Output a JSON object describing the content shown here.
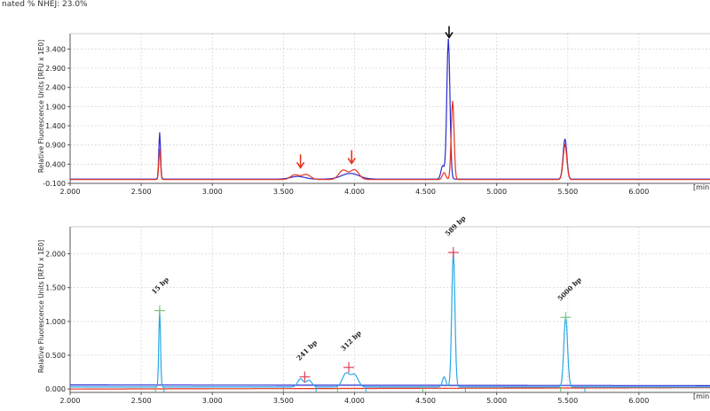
{
  "header": {
    "text": "nated % NHEJ: 23.0%"
  },
  "chart_data": [
    {
      "type": "line",
      "ylabel": "Relative Fluorescence Units [RFU x 1E0]",
      "x_unit_label": "[min]",
      "xlim": [
        2.0,
        6.5
      ],
      "ylim": [
        -0.1,
        3.8
      ],
      "x_ticks": [
        "2.000",
        "2.500",
        "3.000",
        "3.500",
        "4.000",
        "4.500",
        "5.000",
        "5.500",
        "6.000"
      ],
      "y_ticks": [
        "-0.100",
        "0.400",
        "0.900",
        "1.400",
        "1.900",
        "2.400",
        "2.900",
        "3.400"
      ],
      "grid": true,
      "series": [
        {
          "color": "#2a2ad0",
          "baseline": 0.01,
          "peaks": [
            [
              2.63,
              1.22,
              0.006
            ],
            [
              3.6,
              0.07,
              0.05
            ],
            [
              3.97,
              0.15,
              0.06
            ],
            [
              4.62,
              0.35,
              0.012
            ],
            [
              4.66,
              3.65,
              0.011
            ],
            [
              5.48,
              1.05,
              0.013
            ]
          ]
        },
        {
          "color": "#e8341e",
          "baseline": 0.0,
          "peaks": [
            [
              2.63,
              0.8,
              0.006
            ],
            [
              3.58,
              0.12,
              0.03
            ],
            [
              3.66,
              0.13,
              0.03
            ],
            [
              3.92,
              0.24,
              0.03
            ],
            [
              4.0,
              0.25,
              0.03
            ],
            [
              4.63,
              0.18,
              0.012
            ],
            [
              4.69,
              2.05,
              0.01
            ],
            [
              5.48,
              0.9,
              0.013
            ]
          ]
        }
      ],
      "arrows": [
        {
          "x": 4.665,
          "y": 3.72,
          "color": "#111111"
        },
        {
          "x": 3.62,
          "y": 0.24,
          "color": "#e8341e"
        },
        {
          "x": 3.98,
          "y": 0.35,
          "color": "#e8341e"
        }
      ]
    },
    {
      "type": "line",
      "ylabel": "Relative Fluorescence Units [RFU x 1E0]",
      "x_unit_label": "[min]",
      "xlim": [
        2.0,
        6.5
      ],
      "ylim": [
        -0.05,
        2.4
      ],
      "x_ticks": [
        "2.000",
        "2.500",
        "3.000",
        "3.500",
        "4.000",
        "4.500",
        "5.000",
        "5.500",
        "6.000"
      ],
      "y_ticks": [
        "0.000",
        "0.500",
        "1.000",
        "1.500",
        "2.000"
      ],
      "grid": true,
      "series": [
        {
          "color": "#2a2ad0",
          "baseline_start": 0.06,
          "baseline_end": 0.05,
          "peaks": []
        },
        {
          "color": "#e8341e",
          "baseline_start": 0.0,
          "baseline_end": 0.02,
          "peaks": []
        },
        {
          "color": "#29a8e8",
          "baseline": 0.03,
          "peaks": [
            [
              2.63,
              1.16,
              0.006
            ],
            [
              3.62,
              0.12,
              0.02
            ],
            [
              3.68,
              0.1,
              0.02
            ],
            [
              3.94,
              0.2,
              0.025
            ],
            [
              4.0,
              0.18,
              0.025
            ],
            [
              4.63,
              0.15,
              0.012
            ],
            [
              4.695,
              2.0,
              0.011
            ],
            [
              5.485,
              1.04,
              0.013
            ]
          ]
        }
      ],
      "markers": [
        {
          "x": 2.63,
          "y": 1.16,
          "label": "15 bp",
          "color": "#7cc47c"
        },
        {
          "x": 3.65,
          "y": 0.18,
          "label": "241 bp",
          "color": "#e0405a"
        },
        {
          "x": 3.96,
          "y": 0.32,
          "label": "312 bp",
          "color": "#e0405a"
        },
        {
          "x": 4.695,
          "y": 2.02,
          "label": "589 bp",
          "color": "#e0405a"
        },
        {
          "x": 5.485,
          "y": 1.06,
          "label": "5000 bp",
          "color": "#7cc47c"
        }
      ]
    }
  ]
}
